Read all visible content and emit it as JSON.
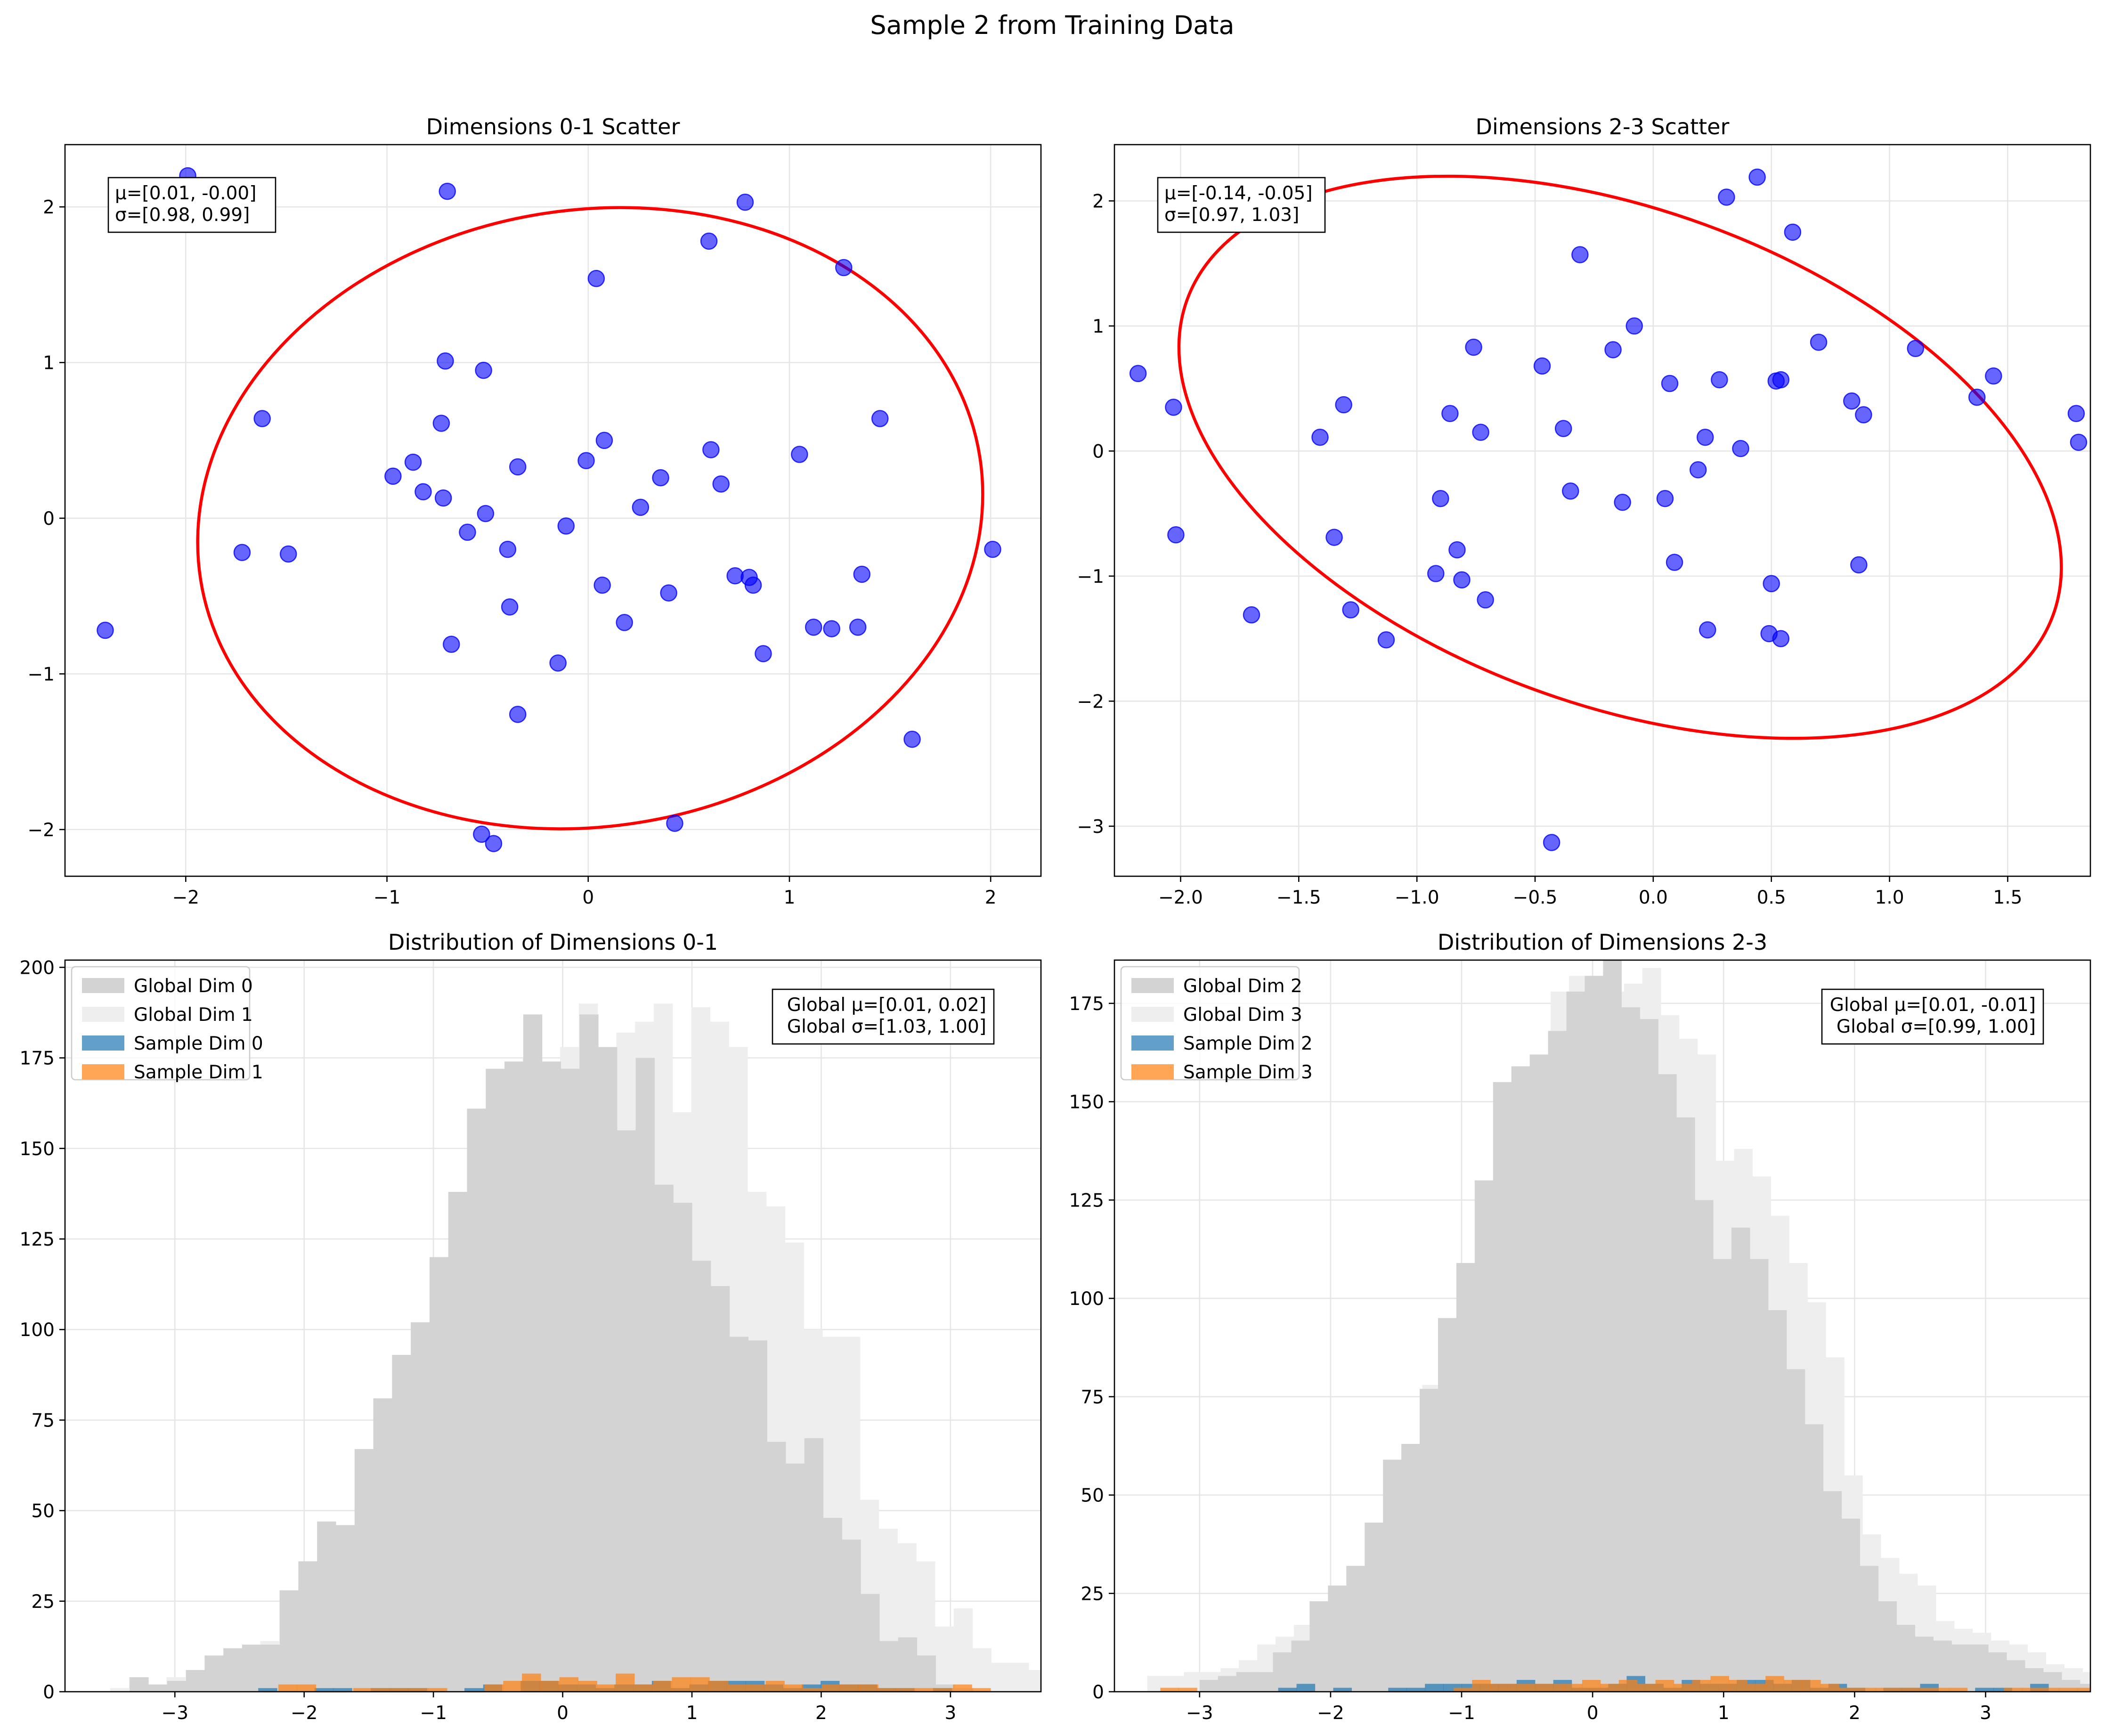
{
  "suptitle": "Sample 2 from Training Data",
  "colors": {
    "scatter_point": "#0000ff",
    "ellipse": "#ff0000",
    "global_a": "#d3d3d3",
    "global_b": "#eeeeee",
    "sample_a": "#1f77b4",
    "sample_b": "#ff7f0e",
    "grid": "#e6e6e6"
  },
  "chart_data": [
    {
      "type": "scatter",
      "title": "Dimensions 0-1 Scatter",
      "xlim": [
        -2.6,
        2.25
      ],
      "ylim": [
        -2.3,
        2.4
      ],
      "xticks": [
        -2,
        -1,
        0,
        1,
        2
      ],
      "yticks": [
        -2,
        -1,
        0,
        1,
        2
      ],
      "xtick_labels": [
        "−2",
        "−1",
        "0",
        "1",
        "2"
      ],
      "ytick_labels": [
        "−2",
        "−1",
        "0",
        "1",
        "2"
      ],
      "stats": [
        "μ=[0.01, -0.00]",
        "σ=[0.98, 0.99]"
      ],
      "ellipse": {
        "cx": 0.01,
        "cy": 0.0,
        "rx": 1.96,
        "ry": 1.98,
        "angle_deg": -9
      },
      "points": [
        [
          -2.4,
          -0.72
        ],
        [
          -1.99,
          2.2
        ],
        [
          -1.72,
          -0.22
        ],
        [
          -1.62,
          0.64
        ],
        [
          -1.49,
          -0.23
        ],
        [
          -0.97,
          0.27
        ],
        [
          -0.87,
          0.36
        ],
        [
          -0.82,
          0.17
        ],
        [
          -0.73,
          0.61
        ],
        [
          -0.72,
          0.13
        ],
        [
          -0.71,
          1.01
        ],
        [
          -0.7,
          2.1
        ],
        [
          -0.68,
          -0.81
        ],
        [
          -0.6,
          -0.09
        ],
        [
          -0.53,
          -2.03
        ],
        [
          -0.52,
          0.95
        ],
        [
          -0.51,
          0.03
        ],
        [
          -0.47,
          -2.09
        ],
        [
          -0.4,
          -0.2
        ],
        [
          -0.39,
          -0.57
        ],
        [
          -0.35,
          -1.26
        ],
        [
          -0.35,
          0.33
        ],
        [
          -0.15,
          -0.93
        ],
        [
          -0.11,
          -0.05
        ],
        [
          -0.01,
          0.37
        ],
        [
          0.04,
          1.54
        ],
        [
          0.07,
          -0.43
        ],
        [
          0.08,
          0.5
        ],
        [
          0.18,
          -0.67
        ],
        [
          0.26,
          0.07
        ],
        [
          0.36,
          0.26
        ],
        [
          0.4,
          -0.48
        ],
        [
          0.43,
          -1.96
        ],
        [
          0.6,
          1.78
        ],
        [
          0.61,
          0.44
        ],
        [
          0.66,
          0.22
        ],
        [
          0.73,
          -0.37
        ],
        [
          0.78,
          2.03
        ],
        [
          0.8,
          -0.38
        ],
        [
          0.82,
          -0.43
        ],
        [
          0.87,
          -0.87
        ],
        [
          1.05,
          0.41
        ],
        [
          1.12,
          -0.7
        ],
        [
          1.21,
          -0.71
        ],
        [
          1.27,
          1.61
        ],
        [
          1.34,
          -0.7
        ],
        [
          1.36,
          -0.36
        ],
        [
          1.45,
          0.64
        ],
        [
          1.61,
          -1.42
        ],
        [
          2.01,
          -0.2
        ]
      ]
    },
    {
      "type": "scatter",
      "title": "Dimensions 2-3 Scatter",
      "xlim": [
        -2.28,
        1.85
      ],
      "ylim": [
        -3.4,
        2.45
      ],
      "xticks": [
        -2.0,
        -1.5,
        -1.0,
        -0.5,
        0.0,
        0.5,
        1.0,
        1.5
      ],
      "yticks": [
        -3,
        -2,
        -1,
        0,
        1,
        2
      ],
      "xtick_labels": [
        "−2.0",
        "−1.5",
        "−1.0",
        "−0.5",
        "0.0",
        "0.5",
        "1.0",
        "1.5"
      ],
      "ytick_labels": [
        "−3",
        "−2",
        "−1",
        "0",
        "1",
        "2"
      ],
      "stats": [
        "μ=[-0.14, -0.05]",
        "σ=[0.97, 1.03]"
      ],
      "ellipse": {
        "cx": -0.14,
        "cy": -0.05,
        "rx": 1.95,
        "ry": 1.98,
        "angle_deg": 20
      },
      "points": [
        [
          -2.18,
          0.62
        ],
        [
          -2.03,
          0.35
        ],
        [
          -2.02,
          -0.67
        ],
        [
          -1.7,
          -1.31
        ],
        [
          -1.41,
          0.11
        ],
        [
          -1.35,
          -0.69
        ],
        [
          -1.31,
          0.37
        ],
        [
          -1.28,
          -1.27
        ],
        [
          -1.13,
          -1.51
        ],
        [
          -0.92,
          -0.98
        ],
        [
          -0.9,
          -0.38
        ],
        [
          -0.86,
          0.3
        ],
        [
          -0.83,
          -0.79
        ],
        [
          -0.81,
          -1.03
        ],
        [
          -0.76,
          0.83
        ],
        [
          -0.73,
          0.15
        ],
        [
          -0.71,
          -1.19
        ],
        [
          -0.47,
          0.68
        ],
        [
          -0.43,
          -3.13
        ],
        [
          -0.38,
          0.18
        ],
        [
          -0.35,
          -0.32
        ],
        [
          -0.31,
          1.57
        ],
        [
          -0.17,
          0.81
        ],
        [
          -0.13,
          -0.41
        ],
        [
          -0.08,
          1.0
        ],
        [
          0.05,
          -0.38
        ],
        [
          0.07,
          0.54
        ],
        [
          0.09,
          -0.89
        ],
        [
          0.19,
          -0.15
        ],
        [
          0.22,
          0.11
        ],
        [
          0.23,
          -1.43
        ],
        [
          0.28,
          0.57
        ],
        [
          0.31,
          2.03
        ],
        [
          0.37,
          0.02
        ],
        [
          0.44,
          2.19
        ],
        [
          0.49,
          -1.46
        ],
        [
          0.5,
          -1.06
        ],
        [
          0.52,
          0.56
        ],
        [
          0.54,
          0.57
        ],
        [
          0.54,
          -1.5
        ],
        [
          0.59,
          1.75
        ],
        [
          0.7,
          0.87
        ],
        [
          0.84,
          0.4
        ],
        [
          0.87,
          -0.91
        ],
        [
          0.89,
          0.29
        ],
        [
          1.11,
          0.82
        ],
        [
          1.37,
          0.43
        ],
        [
          1.44,
          0.6
        ],
        [
          1.79,
          0.3
        ],
        [
          1.8,
          0.07
        ]
      ]
    },
    {
      "type": "bar",
      "title": "Distribution of Dimensions 0-1",
      "xlim": [
        -3.85,
        3.7
      ],
      "ylim": [
        0,
        202
      ],
      "xticks": [
        -3,
        -2,
        -1,
        0,
        1,
        2,
        3
      ],
      "yticks": [
        0,
        25,
        50,
        75,
        100,
        125,
        150,
        175,
        200
      ],
      "xtick_labels": [
        "−3",
        "−2",
        "−1",
        "0",
        "1",
        "2",
        "3"
      ],
      "ytick_labels": [
        "0",
        "25",
        "50",
        "75",
        "100",
        "125",
        "150",
        "175",
        "200"
      ],
      "legend": [
        "Global Dim 0",
        "Global Dim 1",
        "Sample Dim 0",
        "Sample Dim 1"
      ],
      "stats": [
        "Global μ=[0.01, 0.02]",
        "Global σ=[1.03, 1.00]"
      ],
      "bin_width": 0.145,
      "series": [
        {
          "name": "Global Dim 1",
          "style": "global_b",
          "start": -3.5,
          "values": [
            1,
            4,
            2,
            4,
            3,
            5,
            10,
            11,
            14,
            13,
            13,
            17,
            38,
            44,
            47,
            47,
            62,
            81,
            93,
            105,
            115,
            160,
            175,
            170,
            178,
            190,
            175,
            182,
            185,
            190,
            160,
            189,
            185,
            178,
            138,
            134,
            124,
            100,
            98,
            98,
            53,
            45,
            41,
            36,
            18,
            23,
            12,
            8,
            8,
            6,
            4,
            5,
            4,
            3,
            2,
            3
          ]
        },
        {
          "name": "Global Dim 0",
          "style": "global_a",
          "start": -3.35,
          "values": [
            4,
            2,
            3,
            6,
            10,
            12,
            13,
            13,
            28,
            36,
            47,
            46,
            67,
            81,
            93,
            102,
            120,
            138,
            161,
            172,
            174,
            187,
            174,
            172,
            187,
            178,
            155,
            175,
            140,
            135,
            119,
            112,
            98,
            97,
            69,
            63,
            70,
            48,
            42,
            27,
            14,
            15,
            10,
            2,
            1
          ]
        },
        {
          "name": "Sample Dim 0",
          "style": "sample_a",
          "start": -2.5,
          "values": [
            0,
            1,
            0,
            0,
            1,
            1,
            0,
            1,
            1,
            1,
            0,
            0,
            1,
            2,
            0,
            3,
            3,
            2,
            2,
            1,
            2,
            2,
            3,
            1,
            2,
            3,
            3,
            3,
            2,
            1,
            2,
            3,
            2,
            2,
            1,
            1,
            0,
            1,
            0,
            0
          ]
        },
        {
          "name": "Sample Dim 1",
          "style": "sample_b",
          "start": -2.2,
          "values": [
            2,
            2,
            0,
            0,
            1,
            1,
            1,
            1,
            1,
            0,
            0,
            2,
            3,
            5,
            3,
            4,
            3,
            2,
            5,
            2,
            3,
            4,
            4,
            3,
            2,
            2,
            3,
            2,
            1,
            2,
            2,
            2,
            1,
            1,
            1,
            1,
            2,
            1,
            0
          ]
        }
      ]
    },
    {
      "type": "bar",
      "title": "Distribution of Dimensions 2-3",
      "xlim": [
        -3.65,
        3.8
      ],
      "ylim": [
        0,
        186
      ],
      "xticks": [
        -3,
        -2,
        -1,
        0,
        1,
        2,
        3
      ],
      "yticks": [
        0,
        25,
        50,
        75,
        100,
        125,
        150,
        175
      ],
      "xtick_labels": [
        "−3",
        "−2",
        "−1",
        "0",
        "1",
        "2",
        "3"
      ],
      "ytick_labels": [
        "0",
        "25",
        "50",
        "75",
        "100",
        "125",
        "150",
        "175"
      ],
      "legend": [
        "Global Dim 2",
        "Global Dim 3",
        "Sample Dim 2",
        "Sample Dim 3"
      ],
      "stats": [
        "Global μ=[0.01, -0.01]",
        "Global σ=[0.99, 1.00]"
      ],
      "bin_width": 0.14,
      "series": [
        {
          "name": "Global Dim 3",
          "style": "global_b",
          "start": -3.4,
          "values": [
            4,
            4,
            5,
            5,
            6,
            8,
            12,
            14,
            17,
            22,
            23,
            25,
            31,
            47,
            61,
            78,
            87,
            99,
            108,
            121,
            130,
            149,
            178,
            182,
            174,
            178,
            180,
            184,
            172,
            166,
            162,
            135,
            138,
            131,
            121,
            109,
            99,
            85,
            55,
            40,
            34,
            30,
            27,
            18,
            16,
            15,
            13,
            12,
            10,
            7,
            6,
            5,
            6,
            3,
            4,
            3
          ]
        },
        {
          "name": "Global Dim 2",
          "style": "global_a",
          "start": -3.0,
          "values": [
            3,
            4,
            5,
            5,
            10,
            13,
            23,
            27,
            32,
            43,
            59,
            63,
            77,
            95,
            109,
            130,
            155,
            159,
            162,
            168,
            178,
            182,
            188,
            174,
            171,
            157,
            146,
            125,
            110,
            118,
            110,
            97,
            82,
            68,
            51,
            44,
            32,
            23,
            17,
            14,
            13,
            12,
            12,
            10,
            8,
            6,
            5,
            3,
            2,
            1,
            1
          ]
        },
        {
          "name": "Sample Dim 2",
          "style": "sample_a",
          "start": -2.4,
          "values": [
            1,
            2,
            0,
            1,
            0,
            0,
            1,
            1,
            2,
            2,
            2,
            2,
            2,
            3,
            2,
            3,
            1,
            1,
            2,
            4,
            2,
            1,
            3,
            2,
            2,
            3,
            3,
            2,
            3,
            1,
            2,
            1,
            0,
            1,
            1,
            2,
            0,
            0,
            1,
            1,
            0,
            2,
            0
          ]
        },
        {
          "name": "Sample Dim 3",
          "style": "sample_b",
          "start": -3.3,
          "values": [
            1,
            1,
            0,
            0,
            0,
            0,
            0,
            0,
            0,
            0,
            0,
            0,
            0,
            0,
            0,
            0,
            1,
            3,
            2,
            2,
            2,
            2,
            2,
            3,
            2,
            3,
            2,
            3,
            2,
            3,
            4,
            3,
            2,
            4,
            3,
            3,
            2,
            1,
            1,
            1,
            1,
            1,
            1,
            1,
            0,
            0,
            1,
            1,
            1,
            1,
            1,
            0
          ]
        }
      ]
    }
  ]
}
